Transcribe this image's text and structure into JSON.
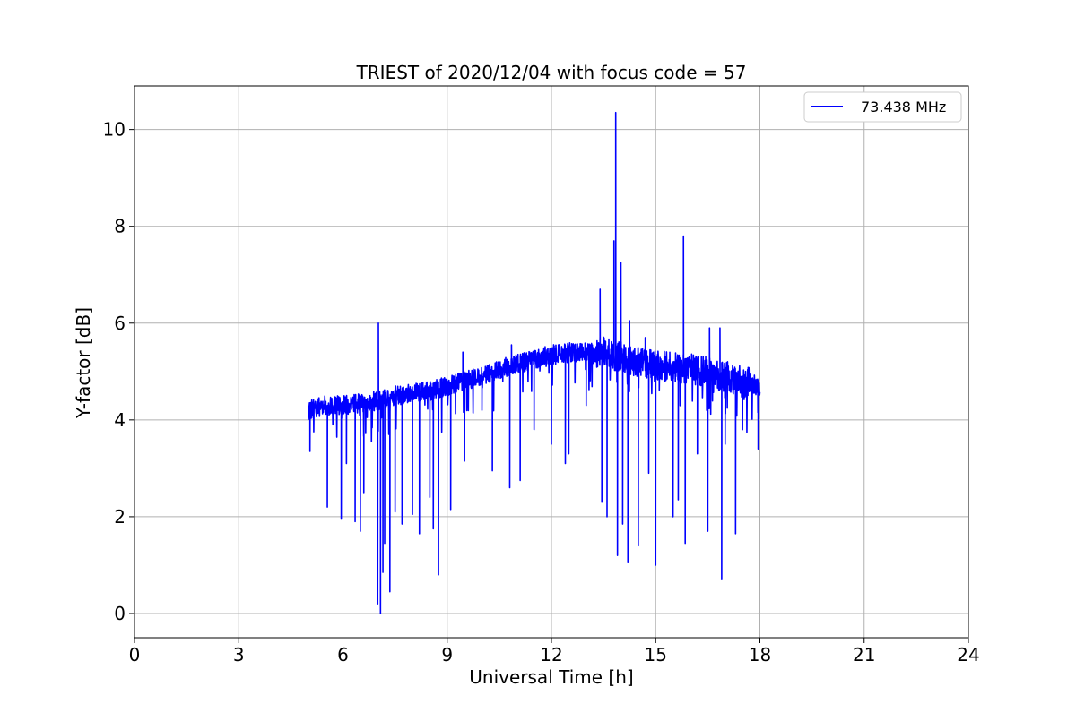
{
  "chart_data": {
    "type": "line",
    "title": "TRIEST of 2020/12/04 with focus code = 57",
    "xlabel": "Universal Time [h]",
    "ylabel": "Y-factor [dB]",
    "xlim": [
      0,
      24
    ],
    "ylim": [
      -0.5,
      10.9
    ],
    "xticks": [
      0,
      3,
      6,
      9,
      12,
      15,
      18,
      21,
      24
    ],
    "yticks": [
      0,
      2,
      4,
      6,
      8,
      10
    ],
    "grid": true,
    "legend": "top-right",
    "series": [
      {
        "name": "73.438 MHz",
        "color": "#0000ff",
        "x": [
          5.0,
          5.2,
          5.5,
          6.0,
          6.5,
          7.0,
          7.5,
          8.0,
          8.5,
          9.0,
          9.5,
          10.0,
          10.5,
          11.0,
          11.5,
          12.0,
          12.5,
          13.0,
          13.5,
          14.0,
          14.5,
          15.0,
          15.5,
          16.0,
          16.5,
          17.0,
          17.5,
          18.0
        ],
        "y": [
          4.2,
          4.25,
          4.3,
          4.3,
          4.35,
          4.4,
          4.5,
          4.55,
          4.6,
          4.7,
          4.8,
          4.9,
          5.05,
          5.15,
          5.25,
          5.35,
          5.4,
          5.4,
          5.4,
          5.3,
          5.2,
          5.1,
          5.1,
          5.05,
          5.0,
          4.9,
          4.8,
          4.7
        ],
        "spikes": [
          [
            5.05,
            3.35
          ],
          [
            5.55,
            2.2
          ],
          [
            5.95,
            1.95
          ],
          [
            6.1,
            3.1
          ],
          [
            6.35,
            1.9
          ],
          [
            6.5,
            1.7
          ],
          [
            6.6,
            2.5
          ],
          [
            7.0,
            0.2
          ],
          [
            7.02,
            6.0
          ],
          [
            7.08,
            0.0
          ],
          [
            7.15,
            0.85
          ],
          [
            7.2,
            1.45
          ],
          [
            7.35,
            0.45
          ],
          [
            7.5,
            2.1
          ],
          [
            7.7,
            1.85
          ],
          [
            8.0,
            2.05
          ],
          [
            8.2,
            1.65
          ],
          [
            8.5,
            2.4
          ],
          [
            8.6,
            1.75
          ],
          [
            8.75,
            0.8
          ],
          [
            9.1,
            2.15
          ],
          [
            9.45,
            5.4
          ],
          [
            9.5,
            3.15
          ],
          [
            10.0,
            4.2
          ],
          [
            10.3,
            2.95
          ],
          [
            10.6,
            4.8
          ],
          [
            10.8,
            2.6
          ],
          [
            10.85,
            5.55
          ],
          [
            11.1,
            2.75
          ],
          [
            11.5,
            3.8
          ],
          [
            12.0,
            3.5
          ],
          [
            12.4,
            3.1
          ],
          [
            12.5,
            3.3
          ],
          [
            13.0,
            4.3
          ],
          [
            13.4,
            6.7
          ],
          [
            13.45,
            2.3
          ],
          [
            13.6,
            2.0
          ],
          [
            13.8,
            7.7
          ],
          [
            13.85,
            10.35
          ],
          [
            13.9,
            1.2
          ],
          [
            14.0,
            7.25
          ],
          [
            14.05,
            1.85
          ],
          [
            14.2,
            1.05
          ],
          [
            14.25,
            6.05
          ],
          [
            14.5,
            1.4
          ],
          [
            14.7,
            5.7
          ],
          [
            14.8,
            2.9
          ],
          [
            15.0,
            1.0
          ],
          [
            15.1,
            4.95
          ],
          [
            15.5,
            2.0
          ],
          [
            15.65,
            2.35
          ],
          [
            15.8,
            7.8
          ],
          [
            15.85,
            1.45
          ],
          [
            16.0,
            5.2
          ],
          [
            16.2,
            3.3
          ],
          [
            16.5,
            1.7
          ],
          [
            16.55,
            5.9
          ],
          [
            16.85,
            5.9
          ],
          [
            16.9,
            0.7
          ],
          [
            17.0,
            3.5
          ],
          [
            17.3,
            1.65
          ],
          [
            17.5,
            3.8
          ],
          [
            17.95,
            3.4
          ]
        ]
      }
    ]
  }
}
